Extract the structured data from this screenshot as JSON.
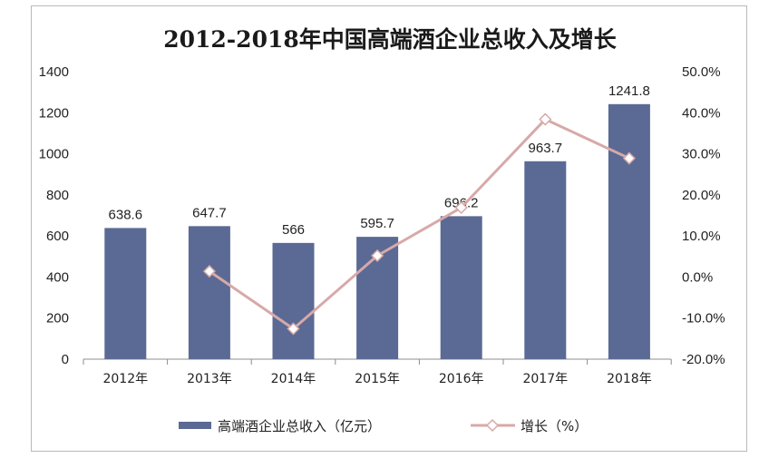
{
  "chart_data": {
    "type": "bar",
    "title": "2012-2018年中国高端酒企业总收入及增长",
    "categories": [
      "2012年",
      "2013年",
      "2014年",
      "2015年",
      "2016年",
      "2017年",
      "2018年"
    ],
    "series": [
      {
        "name": "高端酒企业总收入（亿元）",
        "type": "bar",
        "axis": "left",
        "color": "#5b6a94",
        "values": [
          638.6,
          647.7,
          566,
          595.7,
          696.2,
          963.7,
          1241.8
        ],
        "value_labels": [
          "638.6",
          "647.7",
          "566",
          "595.7",
          "696.2",
          "963.7",
          "1241.8"
        ]
      },
      {
        "name": "增长（%）",
        "type": "line",
        "axis": "right",
        "color": "#d7a9a8",
        "marker": "diamond",
        "values": [
          null,
          1.4,
          -12.6,
          5.2,
          16.9,
          38.4,
          28.9
        ]
      }
    ],
    "y_left": {
      "ylim": [
        0,
        1400
      ],
      "ticks": [
        "0",
        "200",
        "400",
        "600",
        "800",
        "1000",
        "1200",
        "1400"
      ]
    },
    "y_right": {
      "ylim": [
        -20,
        50
      ],
      "ticks": [
        "-20.0%",
        "-10.0%",
        "0.0%",
        "10.0%",
        "20.0%",
        "30.0%",
        "40.0%",
        "50.0%"
      ]
    },
    "grid": false,
    "legend_position": "bottom"
  }
}
